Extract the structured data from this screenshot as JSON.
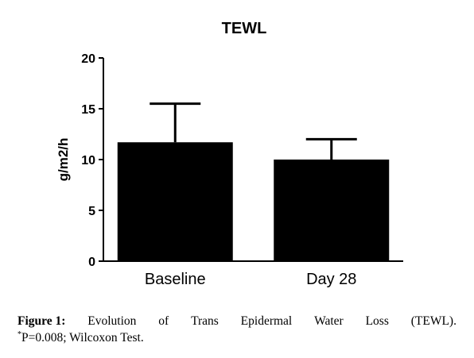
{
  "chart_data": {
    "type": "bar",
    "title": "TEWL",
    "ylabel": "g/m2/h",
    "xlabel": "",
    "categories": [
      "Baseline",
      "Day 28"
    ],
    "values": [
      11.7,
      10.0
    ],
    "error_upper": [
      15.5,
      12.0
    ],
    "ylim": [
      0,
      20
    ],
    "yticks": [
      0,
      5,
      10,
      15,
      20
    ],
    "grid": false,
    "bar_color": "#000000"
  },
  "caption": {
    "label": "Figure 1:",
    "words": [
      "Evolution",
      "of",
      "Trans",
      "Epidermal",
      "Water",
      "Loss",
      "(TEWL)."
    ],
    "sup": "*",
    "line2": "P=0.008; Wilcoxon Test."
  }
}
